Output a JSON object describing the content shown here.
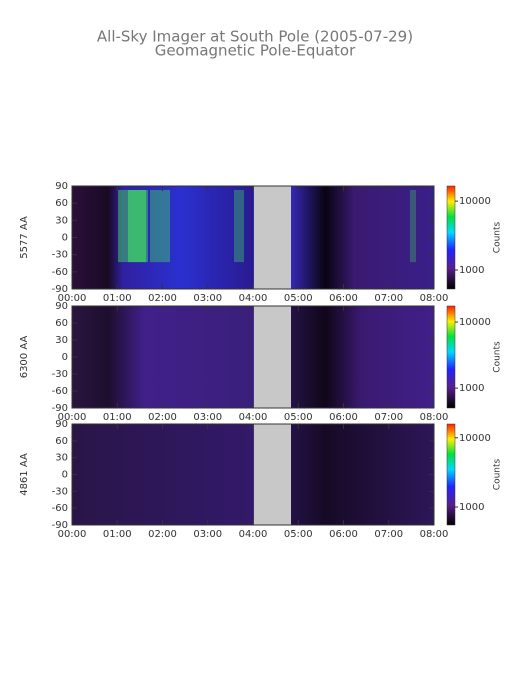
{
  "title": "All-Sky Imager at South Pole (2005-07-29)",
  "subtitle": "Geomagnetic Pole-Equator",
  "chart_data": [
    {
      "type": "heatmap",
      "ylabel": "5577 AA",
      "xlim": [
        0,
        8
      ],
      "ylim": [
        -90,
        90
      ],
      "xticks": [
        {
          "value": 0,
          "label": "00:00"
        },
        {
          "value": 1,
          "label": "01:00"
        },
        {
          "value": 2,
          "label": "02:00"
        },
        {
          "value": 3,
          "label": "03:00"
        },
        {
          "value": 4,
          "label": "04:00"
        },
        {
          "value": 5,
          "label": "05:00"
        },
        {
          "value": 6,
          "label": "06:00"
        },
        {
          "value": 7,
          "label": "07:00"
        },
        {
          "value": 8,
          "label": "08:00"
        }
      ],
      "yticks": [
        90,
        60,
        30,
        0,
        -30,
        -60,
        -90
      ],
      "gap": [
        4.02,
        4.84
      ],
      "colorbar": {
        "label": "Counts",
        "scale": "log",
        "lim": [
          530,
          16600
        ],
        "ticks": [
          1000,
          10000
        ]
      }
    },
    {
      "type": "heatmap",
      "ylabel": "6300 AA",
      "xlim": [
        0,
        8
      ],
      "ylim": [
        -90,
        90
      ],
      "xticks": [
        {
          "value": 0,
          "label": "00:00"
        },
        {
          "value": 1,
          "label": "01:00"
        },
        {
          "value": 2,
          "label": "02:00"
        },
        {
          "value": 3,
          "label": "03:00"
        },
        {
          "value": 4,
          "label": "04:00"
        },
        {
          "value": 5,
          "label": "05:00"
        },
        {
          "value": 6,
          "label": "06:00"
        },
        {
          "value": 7,
          "label": "07:00"
        },
        {
          "value": 8,
          "label": "08:00"
        }
      ],
      "yticks": [
        90,
        60,
        30,
        0,
        -30,
        -60,
        -90
      ],
      "gap": [
        4.02,
        4.84
      ],
      "colorbar": {
        "label": "Counts",
        "scale": "log",
        "lim": [
          500,
          17500
        ],
        "ticks": [
          1000,
          10000
        ]
      }
    },
    {
      "type": "heatmap",
      "ylabel": "4861 AA",
      "xlim": [
        0,
        8
      ],
      "ylim": [
        -90,
        90
      ],
      "xticks": [
        {
          "value": 0,
          "label": "00:00"
        },
        {
          "value": 1,
          "label": "01:00"
        },
        {
          "value": 2,
          "label": "02:00"
        },
        {
          "value": 3,
          "label": "03:00"
        },
        {
          "value": 4,
          "label": "04:00"
        },
        {
          "value": 5,
          "label": "05:00"
        },
        {
          "value": 6,
          "label": "06:00"
        },
        {
          "value": 7,
          "label": "07:00"
        },
        {
          "value": 8,
          "label": "08:00"
        }
      ],
      "yticks": [
        90,
        60,
        30,
        0,
        -30,
        -60,
        -90
      ],
      "gap": [
        4.02,
        4.84
      ],
      "colorbar": {
        "label": "Counts",
        "scale": "log",
        "lim": [
          550,
          15800
        ],
        "ticks": [
          1000,
          10000
        ]
      }
    }
  ]
}
